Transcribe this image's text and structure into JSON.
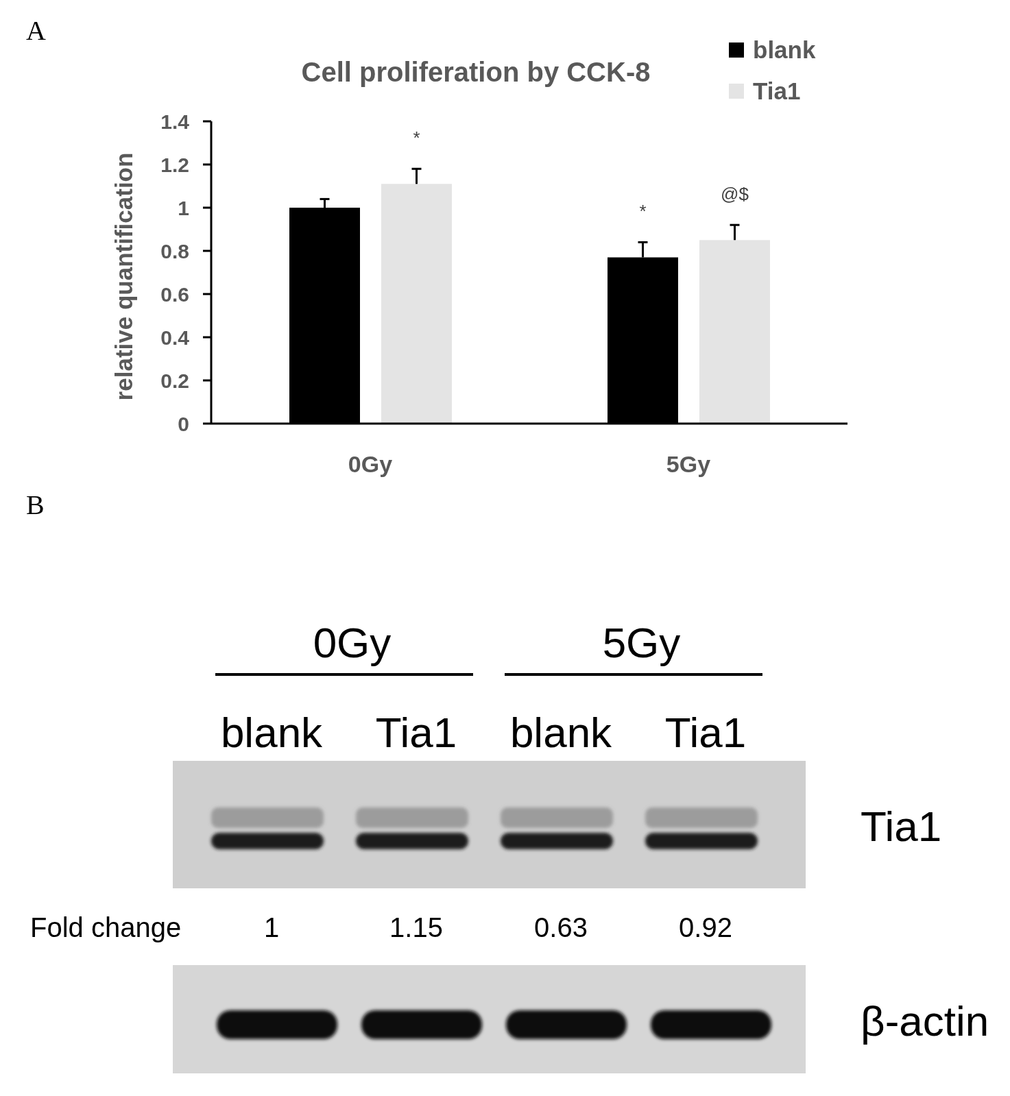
{
  "chart_data": [
    {
      "type": "bar",
      "title": "Cell proliferation by CCK-8",
      "ylabel": "relative quantification",
      "categories": [
        "0Gy",
        "5Gy"
      ],
      "series": [
        {
          "name": "blank",
          "color": "#000000",
          "values": [
            1.0,
            0.77
          ],
          "errors": [
            [
              1.0,
              1.04
            ],
            [
              0.77,
              0.84
            ]
          ],
          "value_labels": [
            null,
            "*"
          ]
        },
        {
          "name": "Tia1",
          "color": "#e4e4e4",
          "values": [
            1.11,
            0.85
          ],
          "errors": [
            [
              1.11,
              1.18
            ],
            [
              0.85,
              0.92
            ]
          ],
          "value_labels": [
            "*",
            "@$"
          ]
        }
      ],
      "ylim": [
        0,
        1.4
      ],
      "yticks": [
        0,
        0.2,
        0.4,
        0.6,
        0.8,
        1,
        1.2,
        1.4
      ],
      "legend": "top right",
      "annotations": [
        "A"
      ]
    },
    {
      "type": "other",
      "categories": [
        "blank",
        "Tia1",
        "blank",
        "Tia1"
      ],
      "values": [
        1,
        1.15,
        0.63,
        0.92
      ],
      "data_labels": true,
      "ylabel": "Fold change",
      "y2_categories": [
        "Tia1",
        "β-actin"
      ],
      "annotations": [
        "B",
        "0Gy",
        "5Gy"
      ]
    }
  ]
}
